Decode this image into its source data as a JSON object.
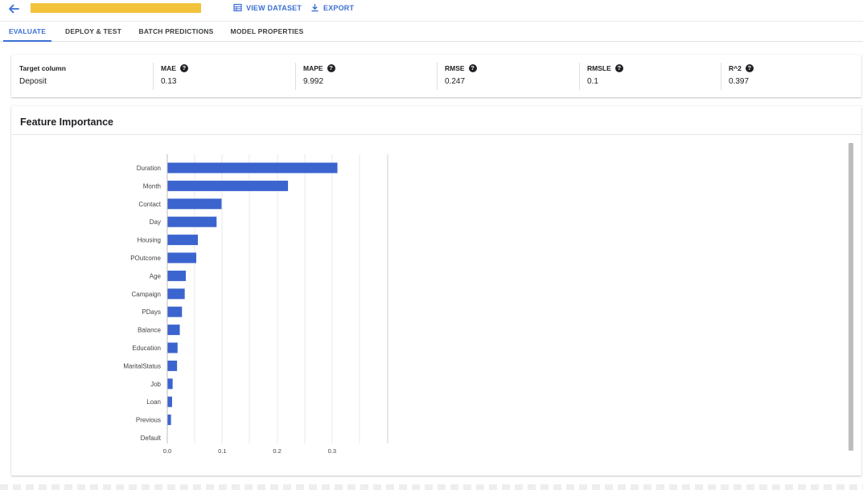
{
  "header": {
    "view_dataset_label": "VIEW DATASET",
    "export_label": "EXPORT",
    "accent_color": "#3b6fd4",
    "redaction_color": "#f2c23a"
  },
  "tabs": [
    {
      "label": "EVALUATE",
      "active": true
    },
    {
      "label": "DEPLOY & TEST",
      "active": false
    },
    {
      "label": "BATCH PREDICTIONS",
      "active": false
    },
    {
      "label": "MODEL PROPERTIES",
      "active": false
    }
  ],
  "metrics": [
    {
      "label": "Target column",
      "value": "Deposit",
      "help": false
    },
    {
      "label": "MAE",
      "value": "0.13",
      "help": true
    },
    {
      "label": "MAPE",
      "value": "9.992",
      "help": true
    },
    {
      "label": "RMSE",
      "value": "0.247",
      "help": true
    },
    {
      "label": "RMSLE",
      "value": "0.1",
      "help": true
    },
    {
      "label": "R^2",
      "value": "0.397",
      "help": true
    }
  ],
  "feature_importance": {
    "title": "Feature Importance"
  },
  "chart_data": {
    "type": "bar",
    "orientation": "horizontal",
    "categories": [
      "Duration",
      "Month",
      "Contact",
      "Day",
      "Housing",
      "POutcome",
      "Age",
      "Campaign",
      "PDays",
      "Balance",
      "Education",
      "MaritalStatus",
      "Job",
      "Loan",
      "Previous",
      "Default"
    ],
    "values": [
      0.309,
      0.219,
      0.098,
      0.089,
      0.055,
      0.052,
      0.033,
      0.031,
      0.026,
      0.022,
      0.018,
      0.017,
      0.009,
      0.008,
      0.006,
      0.0
    ],
    "xticks": [
      "0.0",
      "0.1",
      "0.2",
      "0.3"
    ],
    "xlim": [
      0,
      0.4
    ],
    "grid": true,
    "bar_color": "#3b64cf"
  }
}
